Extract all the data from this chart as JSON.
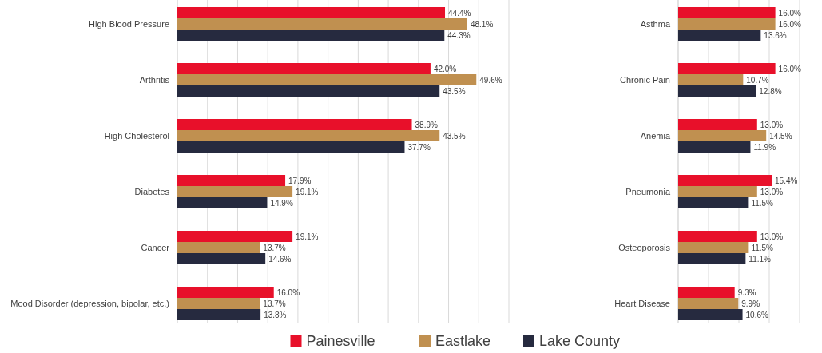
{
  "chart_data": [
    {
      "type": "bar",
      "orientation": "horizontal",
      "categories": [
        "High Blood Pressure",
        "Arthritis",
        "High Cholesterol",
        "Diabetes",
        "Cancer",
        "Mood Disorder (depression, bipolar, etc.)"
      ],
      "xlim": [
        0,
        55
      ],
      "xticks": [
        {
          "value": 0,
          "label": null
        },
        {
          "value": 5,
          "label": null
        },
        {
          "value": 10,
          "label": null
        },
        {
          "value": 15,
          "label": null
        },
        {
          "value": 20,
          "label": null
        },
        {
          "value": 25,
          "label": null
        },
        {
          "value": 30,
          "label": null
        },
        {
          "value": 35,
          "label": null
        },
        {
          "value": 40,
          "label": null
        },
        {
          "value": 45,
          "label": null
        },
        {
          "value": 50,
          "label": null
        },
        {
          "value": 55,
          "label": null
        }
      ],
      "grid": "x",
      "legend": "bottom",
      "series": [
        {
          "name": "Painesville",
          "color": "#e8102a",
          "values": [
            44.4,
            42.0,
            38.9,
            17.9,
            19.1,
            16.0
          ],
          "value_labels": [
            "44.4%",
            "42.0%",
            "38.9%",
            "17.9%",
            "19.1%",
            "16.0%"
          ]
        },
        {
          "name": "Eastlake",
          "color": "#c09050",
          "values": [
            48.1,
            49.6,
            43.5,
            19.1,
            13.7,
            13.7
          ],
          "value_labels": [
            "48.1%",
            "49.6%",
            "43.5%",
            "19.1%",
            "13.7%",
            "13.7%"
          ]
        },
        {
          "name": "Lake County",
          "color": "#262a3f",
          "values": [
            44.3,
            43.5,
            37.7,
            14.9,
            14.6,
            13.8
          ],
          "value_labels": [
            "44.3%",
            "43.5%",
            "37.7%",
            "14.9%",
            "14.6%",
            "13.8%"
          ]
        }
      ]
    },
    {
      "type": "bar",
      "orientation": "horizontal",
      "categories": [
        "Asthma",
        "Chronic Pain",
        "Anemia",
        "Pneumonia",
        "Osteoporosis",
        "Heart Disease"
      ],
      "xlim": [
        0,
        20
      ],
      "xticks": [
        {
          "value": 0,
          "label": null
        },
        {
          "value": 5,
          "label": null
        },
        {
          "value": 10,
          "label": null
        },
        {
          "value": 15,
          "label": null
        },
        {
          "value": 20,
          "label": null
        }
      ],
      "grid": "x",
      "series": [
        {
          "color": "#e8102a",
          "values": [
            16.0,
            16.0,
            13.0,
            15.4,
            13.0,
            9.3
          ],
          "value_labels": [
            "16.0%",
            "16.0%",
            "13.0%",
            "15.4%",
            "13.0%",
            "9.3%"
          ]
        },
        {
          "color": "#c09050",
          "values": [
            16.0,
            10.7,
            14.5,
            13.0,
            11.5,
            9.9
          ],
          "value_labels": [
            "16.0%",
            "10.7%",
            "14.5%",
            "13.0%",
            "11.5%",
            "9.9%"
          ]
        },
        {
          "color": "#262a3f",
          "values": [
            13.6,
            12.8,
            11.9,
            11.5,
            11.1,
            10.6
          ],
          "value_labels": [
            "13.6%",
            "12.8%",
            "11.9%",
            "11.5%",
            "11.1%",
            "10.6%"
          ]
        }
      ]
    }
  ]
}
